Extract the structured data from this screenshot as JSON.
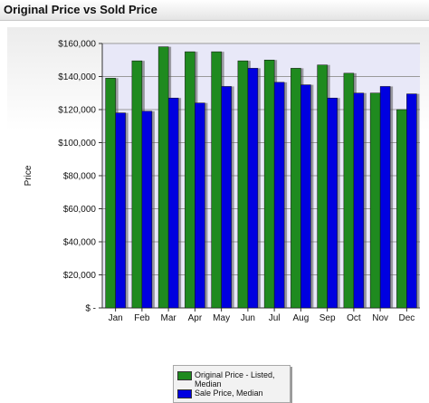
{
  "header": {
    "title": "Original Price vs Sold Price"
  },
  "colors": {
    "original": "#1f8a1f",
    "sold": "#0000e0",
    "plot_bg": "#e8e8f8"
  },
  "chart_data": {
    "type": "bar",
    "ylabel": "Price",
    "xlabel": "",
    "ylim": [
      0,
      160000
    ],
    "y_ticks": [
      0,
      20000,
      40000,
      60000,
      80000,
      100000,
      120000,
      140000,
      160000
    ],
    "y_tick_labels": [
      "$ -",
      "$20,000",
      "$40,000",
      "$60,000",
      "$80,000",
      "$100,000",
      "$120,000",
      "$140,000",
      "$160,000"
    ],
    "categories": [
      "Jan",
      "Feb",
      "Mar",
      "Apr",
      "May",
      "Jun",
      "Jul",
      "Aug",
      "Sep",
      "Oct",
      "Nov",
      "Dec"
    ],
    "grid": true,
    "legend_position": "bottom",
    "series": [
      {
        "name": "Original Price - Listed, Median",
        "color": "#1f8a1f",
        "values": [
          139000,
          149500,
          158000,
          155000,
          155000,
          149500,
          150000,
          145000,
          147000,
          142000,
          130000,
          120000
        ]
      },
      {
        "name": "Sale Price, Median",
        "color": "#0000e0",
        "values": [
          118000,
          119000,
          127000,
          124000,
          134000,
          145000,
          136500,
          135000,
          127000,
          130000,
          134000,
          129500
        ]
      }
    ]
  }
}
